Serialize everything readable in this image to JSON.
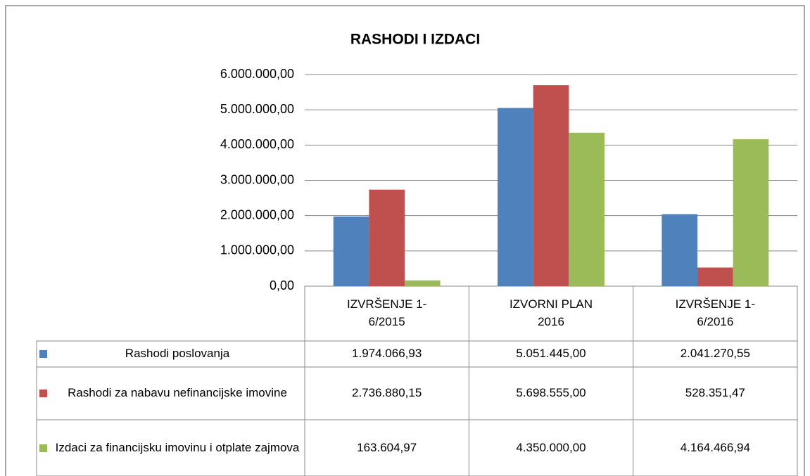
{
  "chart_data": {
    "type": "bar",
    "title": "RASHODI I IZDACI",
    "categories": [
      "IZVRŠENJE 1-6/2015",
      "IZVORNI PLAN 2016",
      "IZVRŠENJE 1-6/2016"
    ],
    "series": [
      {
        "name": "Rashodi poslovanja",
        "color": "#4f81bd",
        "values": [
          1974066.93,
          5051445.0,
          2041270.55
        ],
        "value_labels": [
          "1.974.066,93",
          "5.051.445,00",
          "2.041.270,55"
        ]
      },
      {
        "name": "Rashodi za nabavu nefinancijske imovine",
        "color": "#c0504d",
        "values": [
          2736880.15,
          5698555.0,
          528351.47
        ],
        "value_labels": [
          "2.736.880,15",
          "5.698.555,00",
          "528.351,47"
        ]
      },
      {
        "name": "Izdaci za financijsku imovinu i otplate zajmova",
        "color": "#9bbb59",
        "values": [
          163604.97,
          4350000.0,
          4164466.94
        ],
        "value_labels": [
          "163.604,97",
          "4.350.000,00",
          "4.164.466,94"
        ]
      }
    ],
    "ylim": [
      0,
      6000000
    ],
    "yticks": [
      {
        "value": 0,
        "label": "0,00"
      },
      {
        "value": 1000000,
        "label": "1.000.000,00"
      },
      {
        "value": 2000000,
        "label": "2.000.000,00"
      },
      {
        "value": 3000000,
        "label": "3.000.000,00"
      },
      {
        "value": 4000000,
        "label": "4.000.000,00"
      },
      {
        "value": 5000000,
        "label": "5.000.000,00"
      },
      {
        "value": 6000000,
        "label": "6.000.000,00"
      }
    ],
    "grid": true
  }
}
